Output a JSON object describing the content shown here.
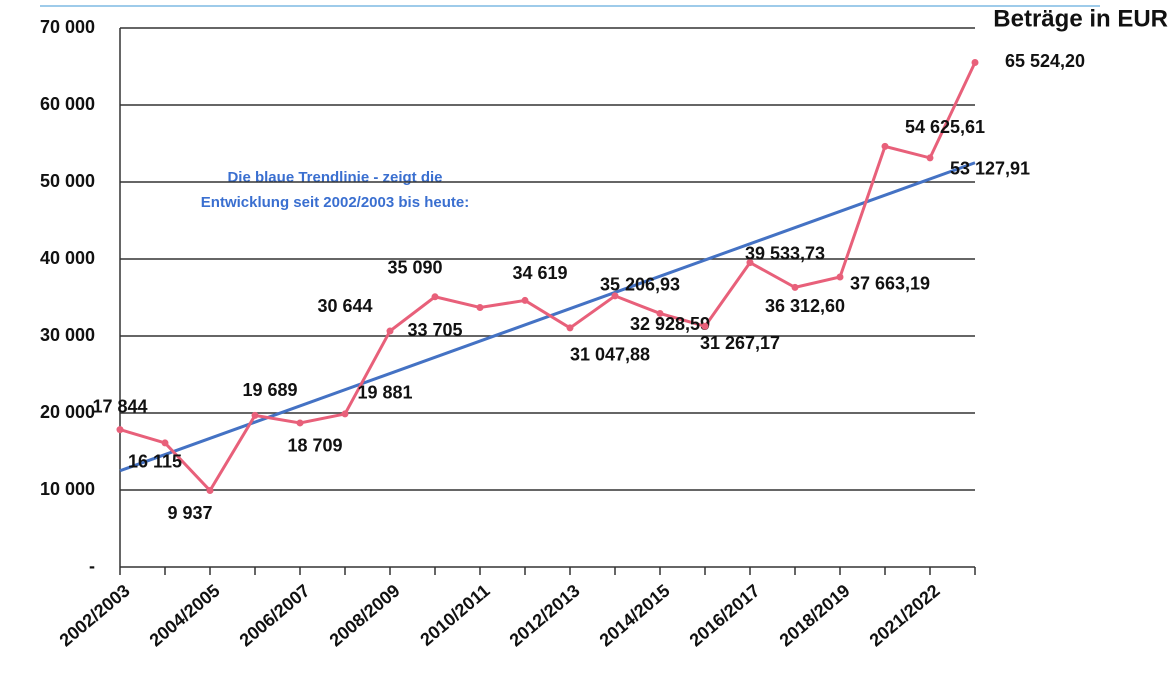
{
  "chart_data": {
    "type": "line",
    "title": "Beträge in EUR",
    "annotation": [
      "Die blaue Trendlinie - zeigt die",
      "Entwicklung seit 2002/2003 bis heute:"
    ],
    "categories": [
      "2002/2003",
      null,
      "2004/2005",
      null,
      "2006/2007",
      null,
      "2008/2009",
      null,
      "2010/2011",
      null,
      "2012/2013",
      null,
      "2014/2015",
      null,
      "2016/2017",
      null,
      "2018/2019",
      null,
      "2021/2022",
      null
    ],
    "series": [
      {
        "color": "#e8607a",
        "values": [
          17844,
          16115,
          9937,
          19689,
          18709,
          19881,
          30644,
          35090,
          33705,
          34619,
          31047.88,
          35206.93,
          32928.59,
          31267.17,
          39533.73,
          36312.6,
          37663.19,
          54625.61,
          53127.91,
          65524.2
        ],
        "value_labels": [
          "17 844",
          "16 115",
          "9 937",
          "19 689",
          "18 709",
          "19 881",
          "30 644",
          "35 090",
          "33 705",
          "34 619",
          "31 047,88",
          "35 206,93",
          "32 928,59",
          "31 267,17",
          "39 533,73",
          "36 312,60",
          "37 663,19",
          "54 625,61",
          "53 127,91",
          "65 524,20"
        ]
      }
    ],
    "trendline": {
      "color": "#4472c4",
      "values": [
        12500,
        52500
      ]
    },
    "ylim": [
      0,
      70000
    ],
    "yticks": [
      {
        "value": 0,
        "label": "-"
      },
      {
        "value": 10000,
        "label": "10 000"
      },
      {
        "value": 20000,
        "label": "20 000"
      },
      {
        "value": 30000,
        "label": "30 000"
      },
      {
        "value": 40000,
        "label": "40 000"
      },
      {
        "value": 50000,
        "label": "50 000"
      },
      {
        "value": 60000,
        "label": "60 000"
      },
      {
        "value": 70000,
        "label": "70 000"
      }
    ],
    "grid": true
  }
}
